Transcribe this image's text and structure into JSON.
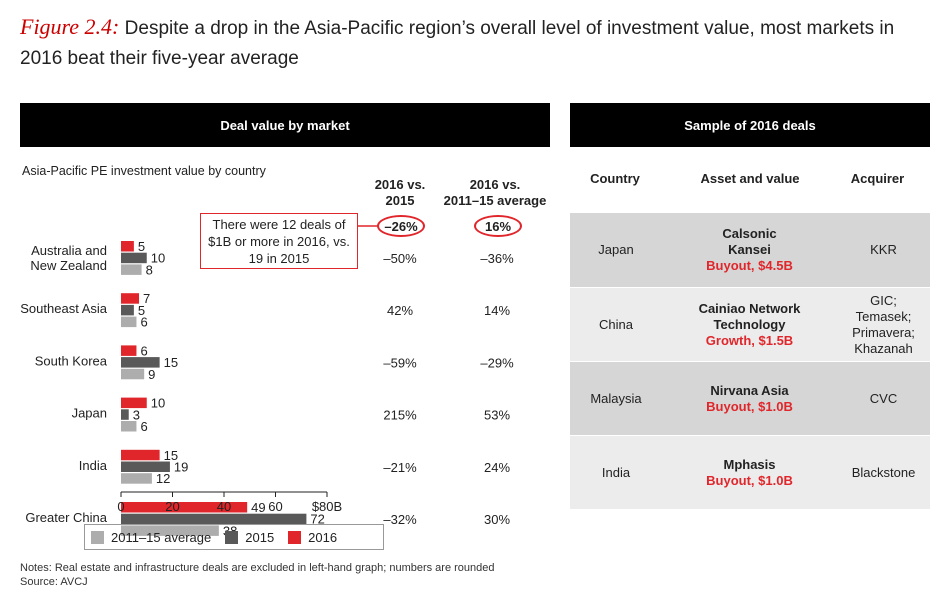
{
  "figure": {
    "label": "Figure 2.4:",
    "title": "Despite a drop in the Asia-Pacific region’s overall level of investment value, most markets in 2016 beat their five-year average"
  },
  "left_panel": {
    "header": "Deal value by market",
    "subtitle": "Asia-Pacific PE investment value by country",
    "col1_header_line1": "2016 vs.",
    "col1_header_line2": "2015",
    "col2_header_line1": "2016 vs.",
    "col2_header_line2": "2011–15  average",
    "total_vs_2015": "–26%",
    "total_vs_avg": "16%",
    "callout": "There were 12 deals of $1B or more in 2016, vs. 19 in 2015"
  },
  "chart_data": {
    "type": "bar",
    "orientation": "horizontal",
    "categories": [
      "Australia and New Zealand",
      "Southeast Asia",
      "South Korea",
      "Japan",
      "India",
      "Greater China"
    ],
    "category_lines": [
      [
        "Australia and",
        "New Zealand"
      ],
      [
        "Southeast Asia"
      ],
      [
        "South Korea"
      ],
      [
        "Japan"
      ],
      [
        "India"
      ],
      [
        "Greater China"
      ]
    ],
    "series": [
      {
        "name": "2016",
        "color": "#e0262b",
        "values": [
          5,
          7,
          6,
          10,
          15,
          49
        ]
      },
      {
        "name": "2015",
        "color": "#595959",
        "values": [
          10,
          5,
          15,
          3,
          19,
          72
        ]
      },
      {
        "name": "2011–15 average",
        "color": "#adadad",
        "values": [
          8,
          6,
          9,
          6,
          12,
          38
        ]
      }
    ],
    "x_ticks": [
      "0",
      "20",
      "40",
      "60",
      "$80B"
    ],
    "xlim": [
      0,
      80
    ],
    "vs_2015": [
      "–50%",
      "42%",
      "–59%",
      "215%",
      "–21%",
      "–32%"
    ],
    "vs_avg": [
      "–36%",
      "14%",
      "–29%",
      "53%",
      "24%",
      "30%"
    ],
    "legend": [
      "2011–15 average",
      "2015",
      "2016"
    ]
  },
  "right_panel": {
    "header": "Sample of 2016 deals",
    "columns": [
      "Country",
      "Asset and value",
      "Acquirer"
    ],
    "rows": [
      {
        "country": "Japan",
        "asset": "Calsonic Kansei",
        "value": "Buyout, $4.5B",
        "acquirer": "KKR"
      },
      {
        "country": "China",
        "asset": "Cainiao Network Technology",
        "value": "Growth, $1.5B",
        "acquirer": "GIC; Temasek; Primavera; Khazanah"
      },
      {
        "country": "Malaysia",
        "asset": "Nirvana Asia",
        "value": "Buyout, $1.0B",
        "acquirer": "CVC"
      },
      {
        "country": "India",
        "asset": "Mphasis",
        "value": "Buyout, $1.0B",
        "acquirer": "Blackstone"
      }
    ]
  },
  "notes": {
    "line1": "Notes: Real estate and infrastructure deals are excluded in left-hand graph; numbers are rounded",
    "line2": "Source: AVCJ"
  },
  "colors": {
    "accent": "#e0262b",
    "dark_gray": "#595959",
    "light_gray": "#adadad",
    "row_dark": "#d6d6d6",
    "row_light": "#ececec"
  }
}
